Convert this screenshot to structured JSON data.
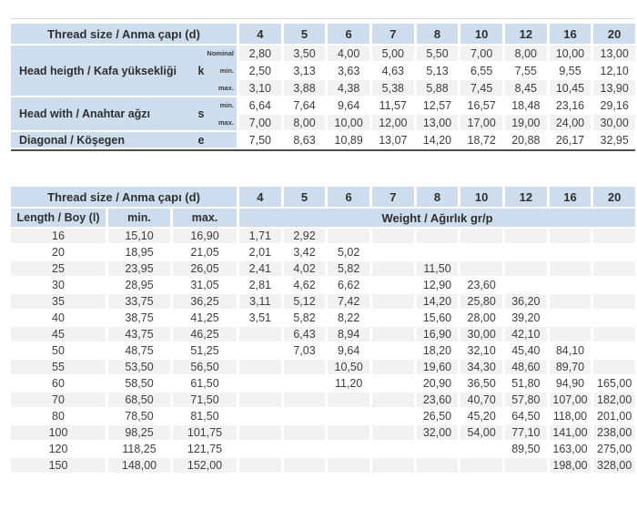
{
  "colors": {
    "header_blue": "#cdddee",
    "stripe_gray": "#f2f2f2",
    "text_dark": "#3b3b3b",
    "rule_dark": "#4f4f4f",
    "rule_light": "#d9d9d9"
  },
  "table1": {
    "header_label": "Thread size / Anma çapı (d)",
    "sizes": [
      "4",
      "5",
      "6",
      "7",
      "8",
      "10",
      "12",
      "16",
      "20"
    ],
    "groups": [
      {
        "label": "Head heigth / Kafa yüksekliği",
        "symbol": "k",
        "rows": [
          {
            "sub": "Nominal",
            "values": [
              "2,80",
              "3,50",
              "4,00",
              "5,00",
              "5,50",
              "7,00",
              "8,00",
              "10,00",
              "13,00"
            ]
          },
          {
            "sub": "min.",
            "values": [
              "2,50",
              "3,13",
              "3,63",
              "4,63",
              "5,13",
              "6,55",
              "7,55",
              "9,55",
              "12,10"
            ]
          },
          {
            "sub": "max.",
            "values": [
              "3,10",
              "3,88",
              "4,38",
              "5,38",
              "5,88",
              "7,45",
              "8,45",
              "10,45",
              "13,90"
            ]
          }
        ]
      },
      {
        "label": "Head with / Anahtar ağzı",
        "symbol": "s",
        "rows": [
          {
            "sub": "min.",
            "values": [
              "6,64",
              "7,64",
              "9,64",
              "11,57",
              "12,57",
              "16,57",
              "18,48",
              "23,16",
              "29,16"
            ]
          },
          {
            "sub": "max.",
            "values": [
              "7,00",
              "8,00",
              "10,00",
              "12,00",
              "13,00",
              "17,00",
              "19,00",
              "24,00",
              "30,00"
            ]
          }
        ]
      },
      {
        "label": "Diagonal / Köşegen",
        "symbol": "e",
        "rows": [
          {
            "sub": "",
            "values": [
              "7,50",
              "8,63",
              "10,89",
              "13,07",
              "14,20",
              "18,72",
              "20,88",
              "26,17",
              "32,95"
            ]
          }
        ]
      }
    ]
  },
  "table2": {
    "header_label": "Thread size / Anma çapı (d)",
    "sizes": [
      "4",
      "5",
      "6",
      "7",
      "8",
      "10",
      "12",
      "16",
      "20"
    ],
    "length_header": "Length / Boy (l)",
    "min_header": "min.",
    "max_header": "max.",
    "weight_header": "Weight / Ağırlık gr/p",
    "rows": [
      {
        "length": "16",
        "min": "15,10",
        "max": "16,90",
        "weights": [
          "1,71",
          "2,92",
          "",
          "",
          "",
          "",
          "",
          "",
          ""
        ]
      },
      {
        "length": "20",
        "min": "18,95",
        "max": "21,05",
        "weights": [
          "2,01",
          "3,42",
          "5,02",
          "",
          "",
          "",
          "",
          "",
          ""
        ]
      },
      {
        "length": "25",
        "min": "23,95",
        "max": "26,05",
        "weights": [
          "2,41",
          "4,02",
          "5,82",
          "",
          "11,50",
          "",
          "",
          "",
          ""
        ]
      },
      {
        "length": "30",
        "min": "28,95",
        "max": "31,05",
        "weights": [
          "2,81",
          "4,62",
          "6,62",
          "",
          "12,90",
          "23,60",
          "",
          "",
          ""
        ]
      },
      {
        "length": "35",
        "min": "33,75",
        "max": "36,25",
        "weights": [
          "3,11",
          "5,12",
          "7,42",
          "",
          "14,20",
          "25,80",
          "36,20",
          "",
          ""
        ]
      },
      {
        "length": "40",
        "min": "38,75",
        "max": "41,25",
        "weights": [
          "3,51",
          "5,82",
          "8,22",
          "",
          "15,60",
          "28,00",
          "39,20",
          "",
          ""
        ]
      },
      {
        "length": "45",
        "min": "43,75",
        "max": "46,25",
        "weights": [
          "",
          "6,43",
          "8,94",
          "",
          "16,90",
          "30,00",
          "42,10",
          "",
          ""
        ]
      },
      {
        "length": "50",
        "min": "48,75",
        "max": "51,25",
        "weights": [
          "",
          "7,03",
          "9,64",
          "",
          "18,20",
          "32,10",
          "45,40",
          "84,10",
          ""
        ]
      },
      {
        "length": "55",
        "min": "53,50",
        "max": "56,50",
        "weights": [
          "",
          "",
          "10,50",
          "",
          "19,60",
          "34,30",
          "48,60",
          "89,70",
          ""
        ]
      },
      {
        "length": "60",
        "min": "58,50",
        "max": "61,50",
        "weights": [
          "",
          "",
          "11,20",
          "",
          "20,90",
          "36,50",
          "51,80",
          "94,90",
          "165,00"
        ]
      },
      {
        "length": "70",
        "min": "68,50",
        "max": "71,50",
        "weights": [
          "",
          "",
          "",
          "",
          "23,60",
          "40,70",
          "57,80",
          "107,00",
          "182,00"
        ]
      },
      {
        "length": "80",
        "min": "78,50",
        "max": "81,50",
        "weights": [
          "",
          "",
          "",
          "",
          "26,50",
          "45,20",
          "64,50",
          "118,00",
          "201,00"
        ]
      },
      {
        "length": "100",
        "min": "98,25",
        "max": "101,75",
        "weights": [
          "",
          "",
          "",
          "",
          "32,00",
          "54,00",
          "77,10",
          "141,00",
          "238,00"
        ]
      },
      {
        "length": "120",
        "min": "118,25",
        "max": "121,75",
        "weights": [
          "",
          "",
          "",
          "",
          "",
          "",
          "89,50",
          "163,00",
          "275,00"
        ]
      },
      {
        "length": "150",
        "min": "148,00",
        "max": "152,00",
        "weights": [
          "",
          "",
          "",
          "",
          "",
          "",
          "",
          "198,00",
          "328,00"
        ]
      }
    ]
  }
}
